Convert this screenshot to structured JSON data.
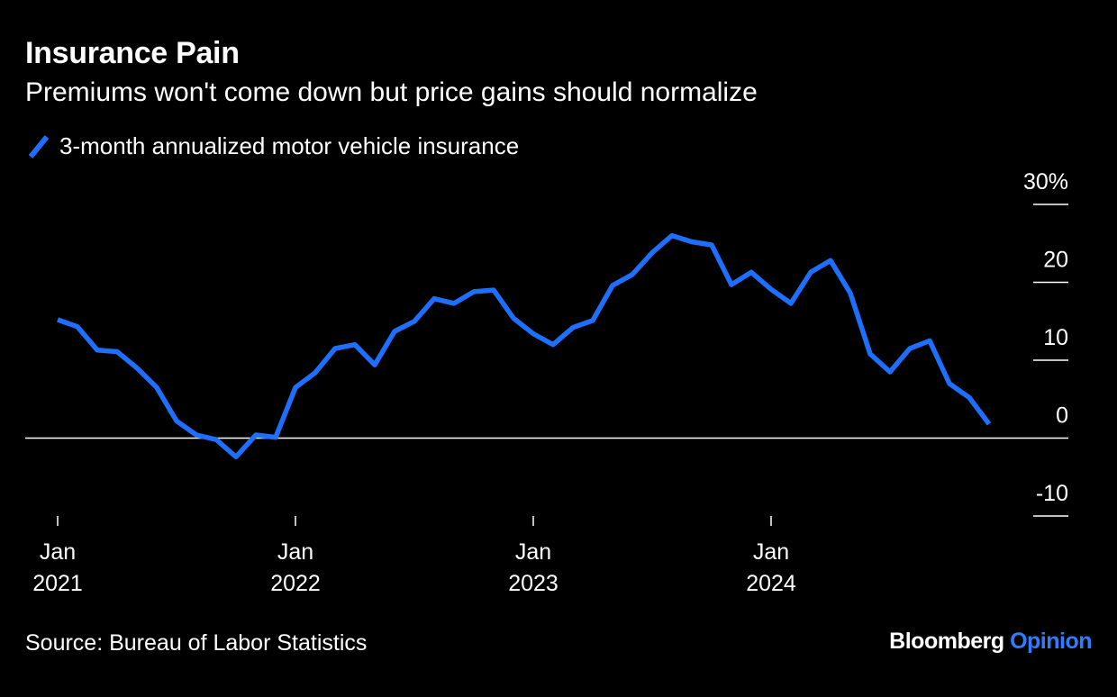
{
  "header": {
    "title": "Insurance Pain",
    "subtitle": "Premiums won't come down but price gains should normalize"
  },
  "legend": {
    "label": "3-month annualized motor vehicle insurance"
  },
  "footer": {
    "source": "Source: Bureau of Labor Statistics",
    "brand_main": "Bloomberg",
    "brand_accent": "Opinion"
  },
  "colors": {
    "background": "#000000",
    "series": "#1f6fff",
    "text": "#ffffff",
    "accent": "#2f7dff"
  },
  "chart_data": {
    "type": "line",
    "y_tick_labels": [
      "30%",
      "20",
      "10",
      "0",
      "-10"
    ],
    "y_ticks": [
      30,
      20,
      10,
      0,
      -10
    ],
    "ylim": [
      -10,
      30
    ],
    "x_ticks": [
      {
        "month": 0,
        "label_top": "Jan",
        "label_bottom": "2021"
      },
      {
        "month": 12,
        "label_top": "Jan",
        "label_bottom": "2022"
      },
      {
        "month": 24,
        "label_top": "Jan",
        "label_bottom": "2023"
      },
      {
        "month": 36,
        "label_top": "Jan",
        "label_bottom": "2024"
      }
    ],
    "x_start": "Jan 2021",
    "series": [
      {
        "values": [
          15.2,
          14.3,
          11.3,
          11.1,
          9.0,
          6.5,
          2.2,
          0.4,
          -0.2,
          -2.4,
          0.4,
          0.1,
          6.5,
          8.4,
          11.5,
          12.0,
          9.4,
          13.7,
          15.0,
          17.9,
          17.3,
          18.8,
          19.0,
          15.4,
          13.4,
          12.0,
          14.2,
          15.1,
          19.6,
          21.0,
          23.8,
          26.0,
          25.2,
          24.8,
          19.7,
          21.3,
          19.1,
          17.3,
          21.3,
          22.8,
          18.6,
          10.8,
          8.5,
          11.5,
          12.5,
          7.0,
          5.2,
          1.8
        ]
      }
    ],
    "grid": false,
    "zero_line": true,
    "legend_position": "top-left"
  }
}
